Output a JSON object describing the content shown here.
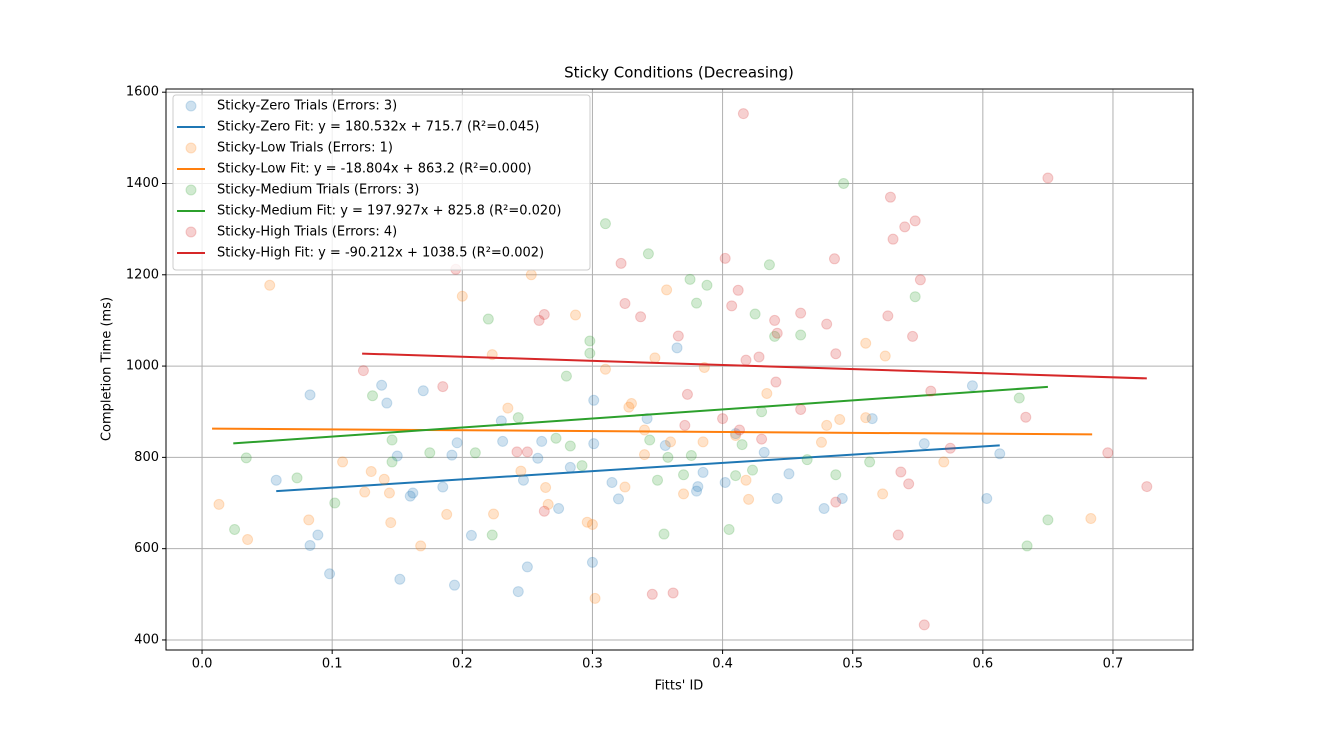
{
  "chart_data": {
    "type": "scatter",
    "title": "Sticky Conditions (Decreasing)",
    "x_label": "Fitts' ID",
    "y_label": "Completion Time (ms)",
    "xlim": [
      -0.0277,
      0.7615
    ],
    "ylim": [
      378,
      1607
    ],
    "xticks": [
      {
        "value": 0,
        "label": "0.0"
      },
      0.1,
      0.2,
      0.3,
      0.4,
      0.5,
      0.6,
      0.7
    ],
    "yticks": [
      400,
      600,
      800,
      1000,
      1200,
      1400,
      1600
    ],
    "grid": true,
    "legend": "upper left",
    "series": [
      {
        "name": "Sticky-Zero Trials (Errors: 3)",
        "type": "scatter",
        "color": "#1f77b4",
        "alpha": 0.22,
        "x": [
          0.057,
          0.083,
          0.083,
          0.089,
          0.098,
          0.138,
          0.142,
          0.15,
          0.152,
          0.16,
          0.162,
          0.17,
          0.185,
          0.192,
          0.194,
          0.196,
          0.207,
          0.23,
          0.231,
          0.243,
          0.247,
          0.25,
          0.258,
          0.261,
          0.274,
          0.283,
          0.3,
          0.301,
          0.301,
          0.315,
          0.32,
          0.342,
          0.356,
          0.365,
          0.38,
          0.381,
          0.385,
          0.402,
          0.41,
          0.432,
          0.442,
          0.451,
          0.478,
          0.492,
          0.515,
          0.555,
          0.592,
          0.603,
          0.613
        ],
        "values": [
          750,
          937,
          607,
          630,
          545,
          958,
          919,
          803,
          533,
          715,
          722,
          946,
          735,
          805,
          520,
          832,
          629,
          880,
          835,
          506,
          750,
          560,
          798,
          835,
          688,
          778,
          570,
          925,
          830,
          745,
          709,
          885,
          826,
          1040,
          726,
          736,
          767,
          745,
          852,
          811,
          710,
          764,
          688,
          710,
          885,
          830,
          957,
          710,
          808
        ]
      },
      {
        "name": "Sticky-Zero Fit: y = 180.532x + 715.7 (R²=0.045)",
        "type": "line",
        "color": "#1f77b4",
        "x": [
          0.057,
          0.613
        ],
        "values": [
          726.0,
          826.4
        ]
      },
      {
        "name": "Sticky-Low Trials (Errors: 1)",
        "type": "scatter",
        "color": "#ff7f0e",
        "alpha": 0.22,
        "x": [
          0.013,
          0.035,
          0.052,
          0.082,
          0.108,
          0.125,
          0.13,
          0.14,
          0.144,
          0.145,
          0.168,
          0.188,
          0.2,
          0.223,
          0.224,
          0.235,
          0.245,
          0.253,
          0.264,
          0.266,
          0.287,
          0.296,
          0.3,
          0.302,
          0.31,
          0.325,
          0.328,
          0.33,
          0.34,
          0.34,
          0.348,
          0.357,
          0.36,
          0.37,
          0.385,
          0.386,
          0.41,
          0.418,
          0.42,
          0.434,
          0.476,
          0.48,
          0.49,
          0.51,
          0.51,
          0.523,
          0.525,
          0.57,
          0.683
        ],
        "values": [
          697,
          620,
          1177,
          663,
          790,
          724,
          769,
          752,
          722,
          657,
          606,
          675,
          1153,
          1025,
          676,
          908,
          770,
          1200,
          734,
          697,
          1112,
          658,
          653,
          491,
          993,
          735,
          910,
          918,
          860,
          806,
          1018,
          1167,
          834,
          720,
          834,
          997,
          848,
          750,
          708,
          940,
          833,
          870,
          883,
          1050,
          887,
          720,
          1022,
          790,
          666
        ]
      },
      {
        "name": "Sticky-Low Fit: y = -18.804x + 863.2 (R²=0.000)",
        "type": "line",
        "color": "#ff7f0e",
        "x": [
          0.0077,
          0.684
        ],
        "values": [
          863.1,
          850.3
        ]
      },
      {
        "name": "Sticky-Medium Trials (Errors: 3)",
        "type": "scatter",
        "color": "#2ca02c",
        "alpha": 0.22,
        "x": [
          0.025,
          0.034,
          0.073,
          0.102,
          0.131,
          0.146,
          0.146,
          0.175,
          0.21,
          0.22,
          0.223,
          0.243,
          0.272,
          0.28,
          0.283,
          0.292,
          0.298,
          0.298,
          0.31,
          0.343,
          0.344,
          0.35,
          0.355,
          0.358,
          0.37,
          0.375,
          0.376,
          0.38,
          0.388,
          0.405,
          0.41,
          0.415,
          0.423,
          0.425,
          0.43,
          0.436,
          0.44,
          0.46,
          0.465,
          0.487,
          0.493,
          0.513,
          0.548,
          0.628,
          0.634,
          0.65
        ],
        "values": [
          642,
          799,
          755,
          700,
          935,
          790,
          838,
          810,
          810,
          1103,
          630,
          887,
          842,
          978,
          825,
          782,
          1055,
          1028,
          1312,
          1246,
          838,
          750,
          632,
          800,
          762,
          1190,
          804,
          1138,
          1177,
          642,
          760,
          828,
          772,
          1114,
          900,
          1222,
          1065,
          1068,
          795,
          762,
          1400,
          790,
          1152,
          930,
          606,
          663
        ]
      },
      {
        "name": "Sticky-Medium Fit: y = 197.927x + 825.8 (R²=0.020)",
        "type": "line",
        "color": "#2ca02c",
        "x": [
          0.024,
          0.65
        ],
        "values": [
          830.6,
          954.5
        ]
      },
      {
        "name": "Sticky-High Trials (Errors: 4)",
        "type": "scatter",
        "color": "#d62728",
        "alpha": 0.22,
        "x": [
          0.124,
          0.185,
          0.195,
          0.242,
          0.25,
          0.259,
          0.263,
          0.263,
          0.322,
          0.325,
          0.337,
          0.346,
          0.362,
          0.366,
          0.371,
          0.373,
          0.4,
          0.402,
          0.407,
          0.412,
          0.413,
          0.416,
          0.418,
          0.428,
          0.43,
          0.44,
          0.441,
          0.442,
          0.46,
          0.46,
          0.48,
          0.486,
          0.487,
          0.487,
          0.527,
          0.529,
          0.531,
          0.535,
          0.537,
          0.54,
          0.543,
          0.546,
          0.548,
          0.552,
          0.555,
          0.56,
          0.575,
          0.633,
          0.65,
          0.696,
          0.726
        ],
        "values": [
          990,
          955,
          1212,
          812,
          812,
          1100,
          1113,
          682,
          1225,
          1137,
          1108,
          500,
          503,
          1066,
          870,
          938,
          885,
          1236,
          1132,
          1166,
          860,
          1553,
          1013,
          1020,
          840,
          1100,
          965,
          1072,
          1116,
          905,
          1092,
          1235,
          1027,
          702,
          1110,
          1370,
          1278,
          630,
          768,
          1305,
          742,
          1065,
          1318,
          1189,
          433,
          945,
          820,
          888,
          1412,
          810,
          736
        ]
      },
      {
        "name": "Sticky-High Fit: y = -90.212x + 1038.5 (R²=0.002)",
        "type": "line",
        "color": "#d62728",
        "x": [
          0.123,
          0.726
        ],
        "values": [
          1027.4,
          973.0
        ]
      }
    ]
  }
}
